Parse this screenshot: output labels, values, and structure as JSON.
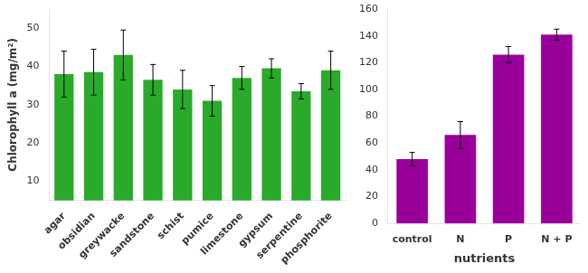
{
  "chart_data": [
    {
      "type": "bar",
      "categories": [
        "agar",
        "obsidian",
        "greywacke",
        "sandstone",
        "schist",
        "pumice",
        "limestone",
        "gypsum",
        "serpentine",
        "phosphorite"
      ],
      "values": [
        38,
        38.5,
        43,
        36.5,
        34,
        31,
        37,
        39.5,
        33.5,
        39
      ],
      "errors": [
        6,
        6,
        6.5,
        4,
        5,
        4,
        3,
        2.5,
        2,
        5
      ],
      "color": "#2aaa2a",
      "ylabel": "Chlorophyll a (mg/m²)",
      "ylim": [
        5,
        55
      ],
      "yticks": [
        10,
        20,
        30,
        40,
        50
      ],
      "grid": false
    },
    {
      "type": "bar",
      "categories": [
        "control",
        "N",
        "P",
        "N + P"
      ],
      "values": [
        48,
        66,
        126,
        141
      ],
      "errors": [
        5,
        10,
        6,
        4
      ],
      "color": "#990099",
      "xlabel": "nutrients",
      "ylim": [
        0,
        160
      ],
      "yticks": [
        0,
        20,
        40,
        60,
        80,
        100,
        120,
        140,
        160
      ],
      "grid": false
    }
  ]
}
